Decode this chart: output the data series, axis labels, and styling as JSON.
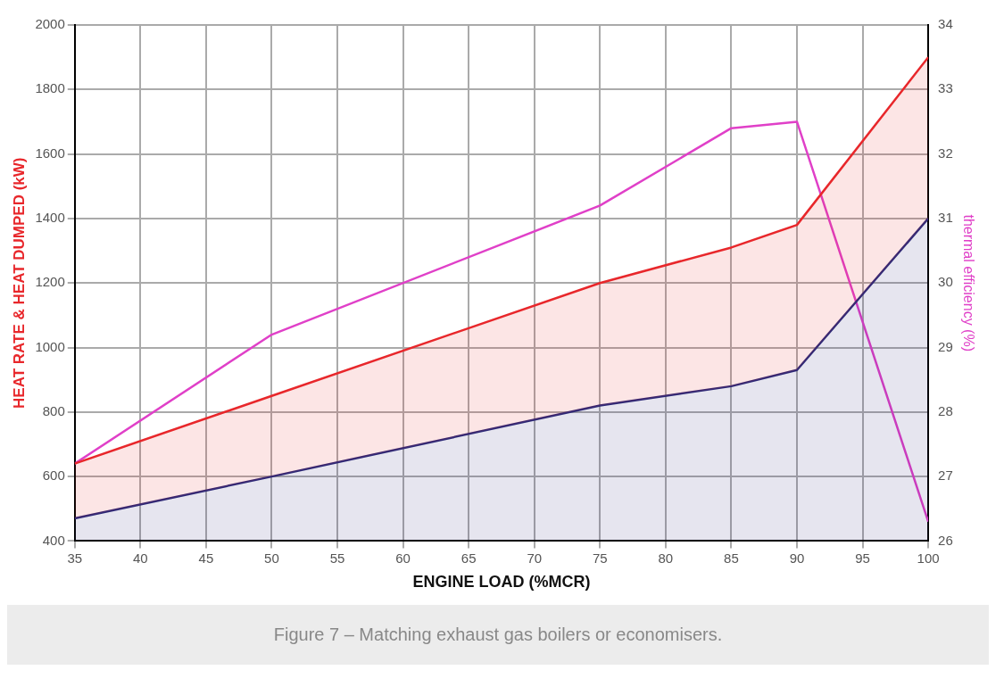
{
  "chart_data": {
    "type": "line",
    "xlabel": "ENGINE LOAD (%MCR)",
    "ylabel": "HEAT RATE & HEAT DUMPED (kW)",
    "y2label": "thermal efficiency (%)",
    "x": [
      35,
      50,
      75,
      85,
      90,
      100
    ],
    "series": [
      {
        "type": "area",
        "color": "#e8272b",
        "values": [
          640,
          850,
          1200,
          1310,
          1380,
          1900
        ]
      },
      {
        "type": "area",
        "color": "#2e2a78",
        "values": [
          470,
          600,
          820,
          880,
          930,
          1400
        ]
      },
      {
        "type": "line",
        "color": "#e040c8",
        "axis": "y2",
        "values": [
          27.2,
          29.2,
          31.2,
          32.4,
          32.5,
          26.3
        ]
      }
    ],
    "xlim": [
      35,
      100
    ],
    "xticks": [
      35,
      40,
      45,
      50,
      55,
      60,
      65,
      70,
      75,
      80,
      85,
      90,
      95,
      100
    ],
    "ylim": [
      400,
      2000
    ],
    "yticks": [
      400,
      600,
      800,
      1000,
      1200,
      1400,
      1600,
      1800,
      2000
    ],
    "y2lim": [
      26,
      34
    ],
    "y2ticks": [
      26,
      27,
      28,
      29,
      30,
      31,
      32,
      33,
      34
    ],
    "grid": true,
    "legend": false,
    "annotations": [
      "Figure 7 – Matching exhaust gas boilers or economisers."
    ]
  }
}
